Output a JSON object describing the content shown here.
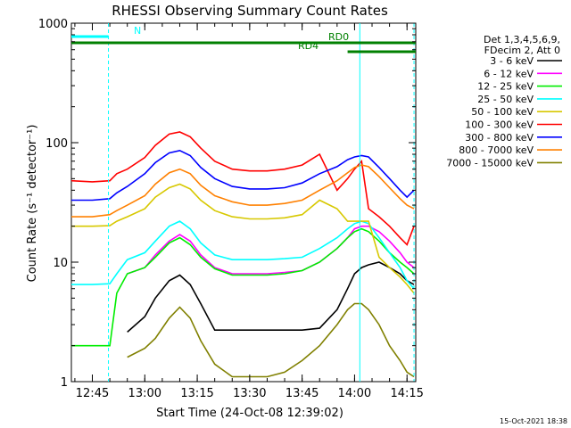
{
  "chart_data": {
    "type": "line",
    "title": "RHESSI Observing Summary Count Rates",
    "xlabel": "Start Time (24-Oct-08 12:39:02)",
    "ylabel": "Count Rate (s⁻¹ detector⁻¹)",
    "yscale": "log",
    "ylim": [
      1,
      1000
    ],
    "xlim_minutes": [
      39.0,
      137.5
    ],
    "x_ticks": [
      "12:45",
      "13:00",
      "13:15",
      "13:30",
      "13:45",
      "14:00",
      "14:15"
    ],
    "y_ticks": [
      "1",
      "10",
      "100",
      "1000"
    ],
    "legend_header": [
      "Det 1,3,4,5,6,9,",
      "FDecim 2, Att 0"
    ],
    "timestamp": "15-Oct-2021 18:38",
    "x_minutes": [
      39,
      45,
      50,
      52,
      55,
      60,
      63,
      67,
      70,
      73,
      76,
      80,
      85,
      90,
      95,
      100,
      105,
      110,
      115,
      118,
      120,
      122,
      124,
      127,
      130,
      133,
      135,
      137
    ],
    "series": [
      {
        "name": "3 - 6 keV",
        "color": "#000000",
        "values": [
          null,
          null,
          null,
          null,
          2.6,
          3.5,
          5.0,
          7.0,
          7.8,
          6.5,
          4.5,
          2.7,
          2.7,
          2.7,
          2.7,
          2.7,
          2.7,
          2.8,
          4.0,
          6.0,
          8.0,
          9.0,
          9.5,
          10.0,
          9.0,
          8.0,
          7.0,
          6.5
        ]
      },
      {
        "name": "6 - 12 keV",
        "color": "#ff00ff",
        "values": [
          null,
          null,
          null,
          null,
          8.0,
          9.0,
          11.5,
          15.0,
          17.0,
          15.0,
          11.5,
          9.0,
          8.0,
          8.0,
          8.0,
          8.2,
          8.5,
          10.0,
          13.0,
          16.0,
          19.0,
          20.0,
          20.0,
          18.0,
          15.0,
          12.0,
          10.0,
          9.0
        ]
      },
      {
        "name": "12 - 25 keV",
        "color": "#00ee00",
        "values": [
          2.0,
          2.0,
          2.0,
          5.5,
          8.0,
          9.0,
          11.0,
          14.5,
          16.0,
          14.0,
          11.0,
          8.8,
          7.8,
          7.8,
          7.8,
          8.0,
          8.5,
          10.0,
          13.0,
          16.0,
          18.0,
          19.0,
          18.0,
          15.0,
          12.0,
          10.0,
          9.0,
          8.0
        ]
      },
      {
        "name": "25 - 50 keV",
        "color": "#00ffff",
        "values": [
          6.5,
          6.5,
          6.6,
          8.0,
          10.5,
          12.0,
          15.0,
          20.0,
          22.0,
          19.0,
          14.5,
          11.5,
          10.5,
          10.5,
          10.5,
          10.7,
          11.0,
          13.0,
          16.0,
          19.0,
          21.0,
          22.0,
          21.0,
          16.0,
          12.0,
          9.0,
          7.0,
          6.0
        ]
      },
      {
        "name": "50 - 100 keV",
        "color": "#d7c800",
        "values": [
          20.0,
          20.0,
          20.2,
          22.0,
          24.0,
          28.0,
          35.0,
          42.0,
          45.0,
          41.0,
          33.0,
          27.0,
          24.0,
          23.0,
          23.0,
          23.5,
          25.0,
          33.0,
          28.0,
          22.0,
          22.0,
          22.0,
          22.0,
          11.0,
          9.0,
          7.5,
          6.5,
          5.5
        ]
      },
      {
        "name": "100 - 300 keV",
        "color": "#ff0000",
        "values": [
          48.0,
          47.0,
          48.0,
          55.0,
          60.0,
          75.0,
          95.0,
          118.0,
          123.0,
          112.0,
          90.0,
          70.0,
          60.0,
          58.0,
          58.0,
          60.0,
          65.0,
          80.0,
          40.0,
          50.0,
          60.0,
          70.0,
          28.0,
          24.0,
          20.0,
          16.0,
          14.0,
          20.0
        ]
      },
      {
        "name": "300 - 800 keV",
        "color": "#0000ff",
        "values": [
          33.0,
          33.0,
          34.0,
          38.0,
          43.0,
          55.0,
          68.0,
          82.0,
          86.0,
          78.0,
          62.0,
          50.0,
          43.0,
          41.0,
          41.0,
          42.0,
          46.0,
          55.0,
          63.0,
          72.0,
          76.0,
          78.0,
          76.0,
          62.0,
          50.0,
          40.0,
          35.0,
          40.0
        ]
      },
      {
        "name": "800 - 7000 keV",
        "color": "#ff8000",
        "values": [
          24.0,
          24.0,
          25.0,
          27.0,
          30.0,
          36.0,
          45.0,
          56.0,
          60.0,
          55.0,
          44.0,
          36.0,
          32.0,
          30.0,
          30.0,
          31.0,
          33.0,
          40.0,
          48.0,
          56.0,
          62.0,
          65.0,
          63.0,
          52.0,
          42.0,
          34.0,
          30.0,
          28.0
        ]
      },
      {
        "name": "7000 - 15000 keV",
        "color": "#808000",
        "values": [
          null,
          null,
          null,
          null,
          1.6,
          1.9,
          2.3,
          3.4,
          4.2,
          3.4,
          2.2,
          1.4,
          1.1,
          1.1,
          1.1,
          1.2,
          1.5,
          2.0,
          3.0,
          4.0,
          4.5,
          4.5,
          4.0,
          3.0,
          2.0,
          1.5,
          1.2,
          1.1
        ]
      }
    ],
    "annotations": [
      {
        "label": "N",
        "color": "#00ffff",
        "x_start": 39.0,
        "x_end": 49.6
      },
      {
        "label": "",
        "color": "#00ffff",
        "x_start": 122.3,
        "x_end": 137.5
      },
      {
        "label": "RD0",
        "color": "#008000",
        "x_start": 39.0,
        "x_end": 137.5
      },
      {
        "label": "RD4",
        "color": "#008000",
        "x_start": 118.0,
        "x_end": 137.5
      }
    ],
    "vlines": [
      {
        "x": 49.6,
        "color": "#00ffff",
        "style": "dashed"
      },
      {
        "x": 121.5,
        "color": "#00ffff",
        "style": "solid"
      },
      {
        "x": 137.0,
        "color": "#00ffff",
        "style": "dashed"
      }
    ],
    "legend_placement": "right"
  }
}
